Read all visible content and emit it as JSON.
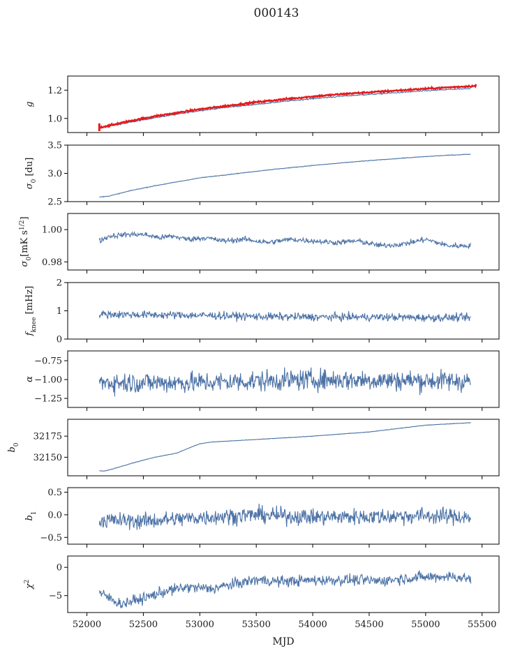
{
  "title": "000143",
  "xlabel": "MJD",
  "colors": {
    "series": "#4c72a6",
    "fit": "#e41a1c"
  },
  "chart_data": [
    {
      "type": "line",
      "ylabel": "g",
      "xlim": [
        51830,
        55650
      ],
      "ylim": [
        0.9,
        1.3
      ],
      "xticks": [
        52000,
        52500,
        53000,
        53500,
        54000,
        54500,
        55000,
        55500
      ],
      "yticks": [
        1.0,
        1.2
      ],
      "ytick_labels": [
        "1.0",
        "1.2"
      ],
      "series": [
        {
          "x": [
            52110,
            52200,
            52400,
            52600,
            52800,
            53000,
            53200,
            53500,
            53800,
            54000,
            54300,
            54600,
            54900,
            55200,
            55400
          ],
          "values": [
            0.935,
            0.945,
            0.975,
            1.005,
            1.03,
            1.055,
            1.075,
            1.1,
            1.125,
            1.14,
            1.16,
            1.175,
            1.19,
            1.205,
            1.21
          ],
          "noise": 0.003,
          "color": "#4c72a6"
        },
        {
          "x": [
            52110,
            52200,
            52400,
            52600,
            52800,
            53000,
            53200,
            53500,
            53800,
            54000,
            54300,
            54600,
            54900,
            55200,
            55450
          ],
          "values": [
            0.935,
            0.95,
            0.985,
            1.015,
            1.04,
            1.065,
            1.085,
            1.115,
            1.14,
            1.155,
            1.175,
            1.19,
            1.205,
            1.22,
            1.23
          ],
          "noise": 0.004,
          "color": "#e41a1c",
          "errorbar": {
            "x": 52110,
            "low": 0.91,
            "high": 0.965
          }
        }
      ]
    },
    {
      "type": "line",
      "ylabel": "σ0 [du]",
      "xlim": [
        51830,
        55650
      ],
      "ylim": [
        2.5,
        3.5
      ],
      "xticks": [
        52000,
        52500,
        53000,
        53500,
        54000,
        54500,
        55000,
        55500
      ],
      "yticks": [
        2.5,
        3.0,
        3.5
      ],
      "ytick_labels": [
        "2.5",
        "3.0",
        "3.5"
      ],
      "series": [
        {
          "x": [
            52110,
            52200,
            52400,
            52600,
            52800,
            53000,
            53300,
            53600,
            54000,
            54400,
            54800,
            55100,
            55400
          ],
          "values": [
            2.58,
            2.6,
            2.7,
            2.78,
            2.85,
            2.92,
            2.99,
            3.06,
            3.14,
            3.21,
            3.27,
            3.31,
            3.34
          ],
          "noise": 0.004,
          "color": "#4c72a6"
        }
      ]
    },
    {
      "type": "line",
      "ylabel": "σ0[mK s1/2]",
      "xlim": [
        51830,
        55650
      ],
      "ylim": [
        0.975,
        1.01
      ],
      "xticks": [
        52000,
        52500,
        53000,
        53500,
        54000,
        54500,
        55000,
        55500
      ],
      "yticks": [
        0.98,
        1.0
      ],
      "ytick_labels": [
        "0.98",
        "1.00"
      ],
      "series": [
        {
          "x": [
            52110,
            52200,
            52350,
            52500,
            52650,
            52750,
            52900,
            53050,
            53200,
            53400,
            53600,
            53800,
            54000,
            54200,
            54400,
            54600,
            54800,
            55000,
            55200,
            55400
          ],
          "values": [
            0.993,
            0.996,
            0.997,
            0.997,
            0.995,
            0.996,
            0.994,
            0.995,
            0.993,
            0.994,
            0.992,
            0.994,
            0.993,
            0.992,
            0.993,
            0.99,
            0.991,
            0.994,
            0.99,
            0.99
          ],
          "noise": 0.0012,
          "color": "#4c72a6"
        }
      ]
    },
    {
      "type": "line",
      "ylabel": "fknee [mHz]",
      "xlim": [
        51830,
        55650
      ],
      "ylim": [
        0,
        2
      ],
      "xticks": [
        52000,
        52500,
        53000,
        53500,
        54000,
        54500,
        55000,
        55500
      ],
      "yticks": [
        0,
        1,
        2
      ],
      "ytick_labels": [
        "0",
        "1",
        "2"
      ],
      "series": [
        {
          "x": [
            52110,
            52500,
            53000,
            53500,
            54000,
            54500,
            55000,
            55400
          ],
          "values": [
            0.88,
            0.86,
            0.84,
            0.8,
            0.78,
            0.78,
            0.76,
            0.76
          ],
          "noise": 0.1,
          "color": "#4c72a6"
        }
      ]
    },
    {
      "type": "line",
      "ylabel": "α",
      "xlim": [
        51830,
        55650
      ],
      "ylim": [
        -1.37,
        -0.62
      ],
      "xticks": [
        52000,
        52500,
        53000,
        53500,
        54000,
        54500,
        55000,
        55500
      ],
      "yticks": [
        -1.25,
        -1.0,
        -0.75
      ],
      "ytick_labels": [
        "−1.25",
        "−1.00",
        "−0.75"
      ],
      "series": [
        {
          "x": [
            52110,
            53000,
            54000,
            55400
          ],
          "values": [
            -1.04,
            -1.04,
            -1.0,
            -1.02
          ],
          "noise": 0.1,
          "color": "#4c72a6"
        }
      ]
    },
    {
      "type": "line",
      "ylabel": "b0",
      "xlim": [
        51830,
        55650
      ],
      "ylim": [
        32128,
        32195
      ],
      "xticks": [
        52000,
        52500,
        53000,
        53500,
        54000,
        54500,
        55000,
        55500
      ],
      "yticks": [
        32150,
        32175
      ],
      "ytick_labels": [
        "32150",
        "32175"
      ],
      "series": [
        {
          "x": [
            52110,
            52150,
            52200,
            52400,
            52600,
            52800,
            52850,
            53000,
            53100,
            53500,
            54000,
            54500,
            55000,
            55400
          ],
          "values": [
            32134,
            32133.5,
            32135,
            32143,
            32150,
            32155,
            32158,
            32166,
            32168,
            32171,
            32175,
            32180,
            32188,
            32191
          ],
          "noise": 0.2,
          "color": "#4c72a6"
        }
      ]
    },
    {
      "type": "line",
      "ylabel": "b1",
      "xlim": [
        51830,
        55650
      ],
      "ylim": [
        -0.65,
        0.6
      ],
      "xticks": [
        52000,
        52500,
        53000,
        53500,
        54000,
        54500,
        55000,
        55500
      ],
      "yticks": [
        -0.5,
        0.0,
        0.5
      ],
      "ytick_labels": [
        "−0.5",
        "0.0",
        "0.5"
      ],
      "series": [
        {
          "x": [
            52110,
            52500,
            53000,
            53500,
            54000,
            54500,
            55000,
            55400
          ],
          "values": [
            -0.12,
            -0.14,
            -0.06,
            0.0,
            -0.05,
            -0.04,
            -0.02,
            -0.05
          ],
          "noise": 0.13,
          "color": "#4c72a6"
        }
      ]
    },
    {
      "type": "line",
      "ylabel": "χ2",
      "xlim": [
        51830,
        55650
      ],
      "ylim": [
        -8,
        2
      ],
      "xticks": [
        52000,
        52500,
        53000,
        53500,
        54000,
        54500,
        55000,
        55500
      ],
      "xtick_labels": [
        "52000",
        "52500",
        "53000",
        "53500",
        "54000",
        "54500",
        "55000",
        "55500"
      ],
      "yticks": [
        -5,
        0
      ],
      "ytick_labels": [
        "−5",
        "0"
      ],
      "series": [
        {
          "x": [
            52110,
            52300,
            52500,
            52700,
            52900,
            53100,
            53300,
            53500,
            53700,
            54000,
            54300,
            54600,
            54900,
            55200,
            55400
          ],
          "values": [
            -4.5,
            -6.5,
            -5.5,
            -4.2,
            -3.5,
            -3.8,
            -3.0,
            -2.2,
            -2.5,
            -2.3,
            -2.2,
            -2.4,
            -1.8,
            -1.6,
            -2.0
          ],
          "noise": 0.7,
          "color": "#4c72a6"
        }
      ]
    }
  ]
}
